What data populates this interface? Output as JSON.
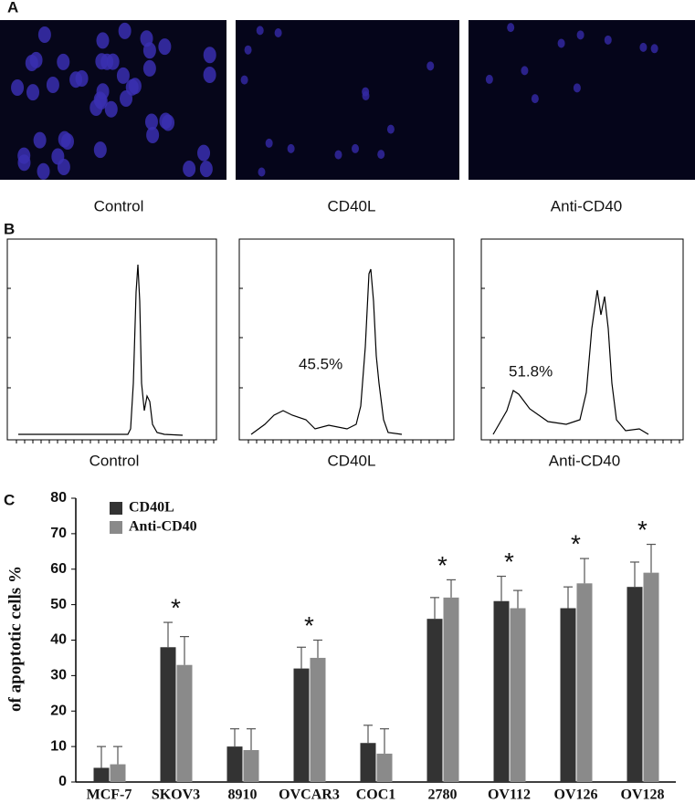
{
  "panel_labels": [
    "A",
    "B",
    "C"
  ],
  "microscopy": {
    "labels": [
      "Control",
      "CD40L",
      "Anti-CD40"
    ]
  },
  "flow_cytometry": {
    "histograms": [
      {
        "label": "Control"
      },
      {
        "label": "CD40L",
        "annotation": "45.5%"
      },
      {
        "label": "Anti-CD40",
        "annotation": "51.8%"
      }
    ]
  },
  "chart_data": {
    "type": "bar",
    "ylabel": "of apoptotic cells %",
    "categories": [
      "MCF-7",
      "SKOV3",
      "8910",
      "OVCAR3",
      "COC1",
      "2780",
      "OV112",
      "OV126",
      "OV128"
    ],
    "series": [
      {
        "name": "CD40L",
        "color": "#333333",
        "values": [
          4,
          38,
          10,
          32,
          11,
          46,
          51,
          49,
          55
        ],
        "errors": [
          6,
          7,
          5,
          6,
          5,
          6,
          7,
          6,
          7
        ]
      },
      {
        "name": "Anti-CD40",
        "color": "#8a8a8a",
        "values": [
          5,
          33,
          9,
          35,
          8,
          52,
          49,
          56,
          59
        ],
        "errors": [
          5,
          8,
          6,
          5,
          7,
          5,
          5,
          7,
          8
        ]
      }
    ],
    "significance": [
      null,
      "*",
      null,
      "*",
      null,
      "*",
      "*",
      "*",
      "*"
    ],
    "ylim": [
      0,
      80
    ],
    "yticks": [
      0,
      10,
      20,
      30,
      40,
      50,
      60,
      70,
      80
    ],
    "legend": "top-left"
  }
}
